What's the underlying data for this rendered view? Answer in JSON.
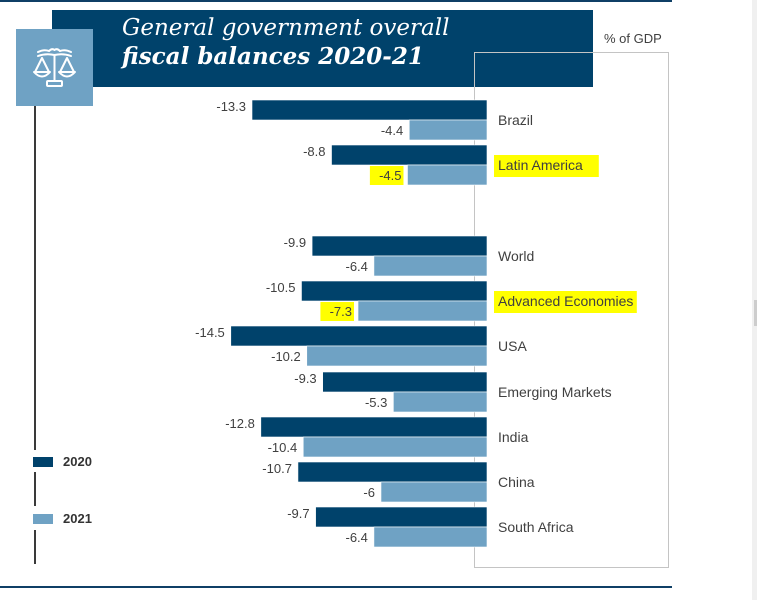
{
  "title": {
    "line1": "General government overall",
    "line2": "fiscal balances 2020-21",
    "icon": "scales-of-justice-icon"
  },
  "unit_label": "% of GDP",
  "legend": [
    {
      "label": "2020",
      "color": "#00426b"
    },
    {
      "label": "2021",
      "color": "#6fa2c4"
    }
  ],
  "highlights": {
    "categories": [
      "Latin America",
      "Advanced Economies"
    ],
    "values": [
      "Latin America|2021",
      "Advanced Economies|2021"
    ],
    "color": "#ffff00"
  },
  "chart_data": {
    "type": "bar",
    "orientation": "horizontal",
    "title": "General government overall fiscal balances 2020-21",
    "xlabel": "",
    "ylabel": "% of GDP",
    "categories": [
      "Brazil",
      "Latin America",
      "World",
      "Advanced Economies",
      "USA",
      "Emerging Markets",
      "India",
      "China",
      "South Africa"
    ],
    "group_breaks_after": [
      "Latin America"
    ],
    "series": [
      {
        "name": "2020",
        "color": "#00426b",
        "values": [
          -13.3,
          -8.8,
          -9.9,
          -10.5,
          -14.5,
          -9.3,
          -12.8,
          -10.7,
          -9.7
        ]
      },
      {
        "name": "2021",
        "color": "#6fa2c4",
        "values": [
          -4.4,
          -4.5,
          -6.4,
          -7.3,
          -10.2,
          -5.3,
          -10.4,
          -6,
          -6.4
        ]
      }
    ],
    "value_labels": {
      "2020": [
        "-13.3",
        "-8.8",
        "-9.9",
        "-10.5",
        "-14.5",
        "-9.3",
        "-12.8",
        "-10.7",
        "-9.7"
      ],
      "2021": [
        "-4.4",
        "-4.5",
        "-6.4",
        "-7.3",
        "-10.2",
        "-5.3",
        "-10.4",
        "-6",
        "-6.4"
      ]
    },
    "xlim": [
      -15,
      0
    ],
    "grid": false,
    "legend_position": "bottom-left"
  }
}
